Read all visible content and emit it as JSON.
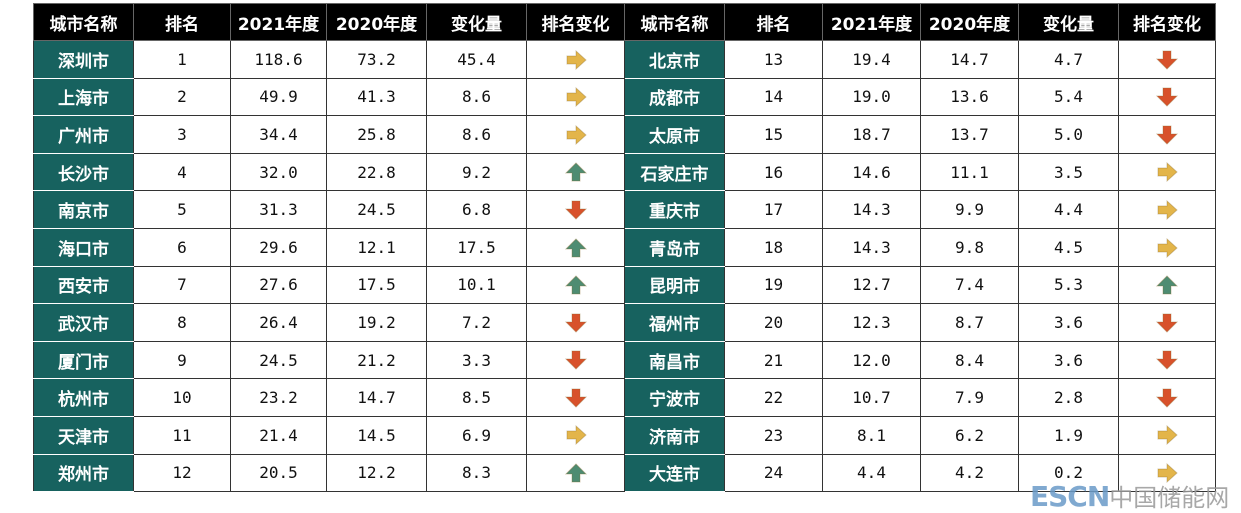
{
  "headers": [
    "城市名称",
    "排名",
    "2021年度",
    "2020年度",
    "变化量",
    "排名变化"
  ],
  "left": [
    {
      "city": "深圳市",
      "rank": "1",
      "y2021": "118.6",
      "y2020": "73.2",
      "change": "45.4",
      "trend": "right"
    },
    {
      "city": "上海市",
      "rank": "2",
      "y2021": "49.9",
      "y2020": "41.3",
      "change": "8.6",
      "trend": "right"
    },
    {
      "city": "广州市",
      "rank": "3",
      "y2021": "34.4",
      "y2020": "25.8",
      "change": "8.6",
      "trend": "right"
    },
    {
      "city": "长沙市",
      "rank": "4",
      "y2021": "32.0",
      "y2020": "22.8",
      "change": "9.2",
      "trend": "up"
    },
    {
      "city": "南京市",
      "rank": "5",
      "y2021": "31.3",
      "y2020": "24.5",
      "change": "6.8",
      "trend": "down"
    },
    {
      "city": "海口市",
      "rank": "6",
      "y2021": "29.6",
      "y2020": "12.1",
      "change": "17.5",
      "trend": "up"
    },
    {
      "city": "西安市",
      "rank": "7",
      "y2021": "27.6",
      "y2020": "17.5",
      "change": "10.1",
      "trend": "up"
    },
    {
      "city": "武汉市",
      "rank": "8",
      "y2021": "26.4",
      "y2020": "19.2",
      "change": "7.2",
      "trend": "down"
    },
    {
      "city": "厦门市",
      "rank": "9",
      "y2021": "24.5",
      "y2020": "21.2",
      "change": "3.3",
      "trend": "down"
    },
    {
      "city": "杭州市",
      "rank": "10",
      "y2021": "23.2",
      "y2020": "14.7",
      "change": "8.5",
      "trend": "down"
    },
    {
      "city": "天津市",
      "rank": "11",
      "y2021": "21.4",
      "y2020": "14.5",
      "change": "6.9",
      "trend": "right"
    },
    {
      "city": "郑州市",
      "rank": "12",
      "y2021": "20.5",
      "y2020": "12.2",
      "change": "8.3",
      "trend": "up"
    }
  ],
  "right": [
    {
      "city": "北京市",
      "rank": "13",
      "y2021": "19.4",
      "y2020": "14.7",
      "change": "4.7",
      "trend": "down"
    },
    {
      "city": "成都市",
      "rank": "14",
      "y2021": "19.0",
      "y2020": "13.6",
      "change": "5.4",
      "trend": "down"
    },
    {
      "city": "太原市",
      "rank": "15",
      "y2021": "18.7",
      "y2020": "13.7",
      "change": "5.0",
      "trend": "down"
    },
    {
      "city": "石家庄市",
      "rank": "16",
      "y2021": "14.6",
      "y2020": "11.1",
      "change": "3.5",
      "trend": "right"
    },
    {
      "city": "重庆市",
      "rank": "17",
      "y2021": "14.3",
      "y2020": "9.9",
      "change": "4.4",
      "trend": "right"
    },
    {
      "city": "青岛市",
      "rank": "18",
      "y2021": "14.3",
      "y2020": "9.8",
      "change": "4.5",
      "trend": "right"
    },
    {
      "city": "昆明市",
      "rank": "19",
      "y2021": "12.7",
      "y2020": "7.4",
      "change": "5.3",
      "trend": "up"
    },
    {
      "city": "福州市",
      "rank": "20",
      "y2021": "12.3",
      "y2020": "8.7",
      "change": "3.6",
      "trend": "down"
    },
    {
      "city": "南昌市",
      "rank": "21",
      "y2021": "12.0",
      "y2020": "8.4",
      "change": "3.6",
      "trend": "down"
    },
    {
      "city": "宁波市",
      "rank": "22",
      "y2021": "10.7",
      "y2020": "7.9",
      "change": "2.8",
      "trend": "down"
    },
    {
      "city": "济南市",
      "rank": "23",
      "y2021": "8.1",
      "y2020": "6.2",
      "change": "1.9",
      "trend": "right"
    },
    {
      "city": "大连市",
      "rank": "24",
      "y2021": "4.4",
      "y2020": "4.2",
      "change": "0.2",
      "trend": "right"
    }
  ],
  "trend_colors": {
    "right": "#e3b54a",
    "up": "#4e8c72",
    "down": "#d8512b"
  },
  "watermark": {
    "brand": "ESCN",
    "name": "中国储能网"
  }
}
